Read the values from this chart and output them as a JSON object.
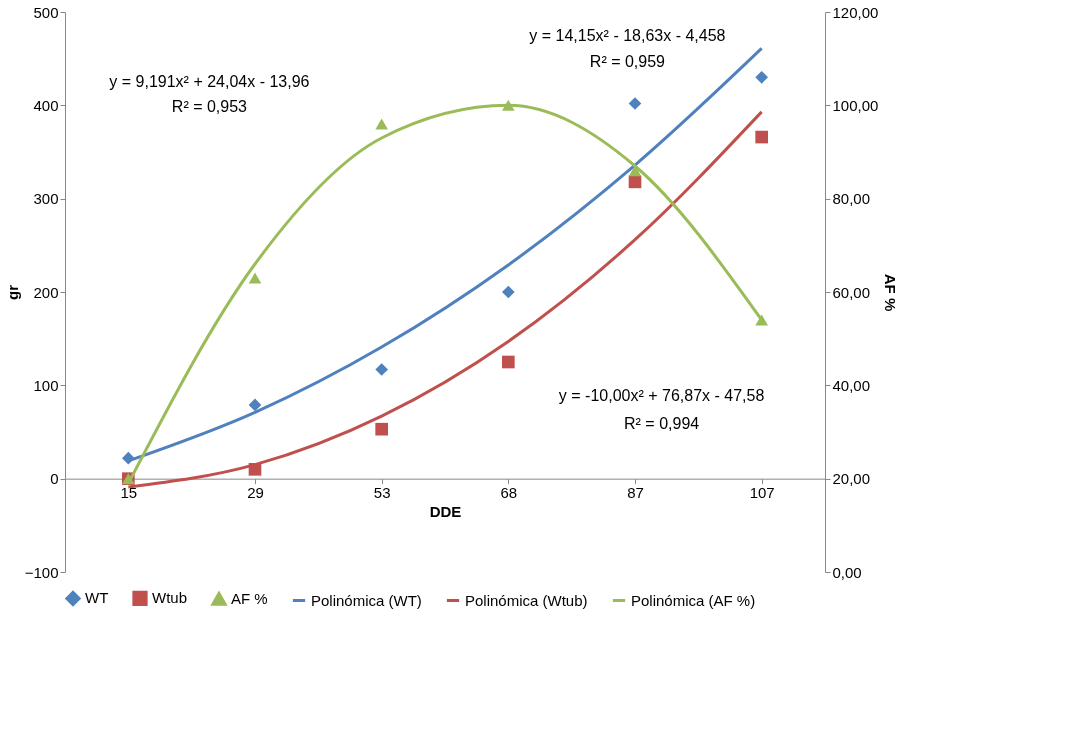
{
  "chart_data": {
    "type": "scatter",
    "xlabel": "DDE",
    "ylabel": "gr",
    "y2label": "AF %",
    "categories": [
      "15",
      "29",
      "53",
      "68",
      "87",
      "107"
    ],
    "series": [
      {
        "name": "WT",
        "marker": "diamond",
        "color": "#4f81bd",
        "values": [
          22,
          79,
          117,
          200,
          402,
          430
        ]
      },
      {
        "name": "Wtub",
        "marker": "square",
        "color": "#c0504d",
        "values": [
          0,
          10,
          53,
          125,
          318,
          366
        ]
      },
      {
        "name": "AF %",
        "marker": "triangle",
        "axis": "y2",
        "color": "#9bbb59",
        "values": [
          20,
          63,
          96,
          100,
          86,
          54
        ]
      },
      {
        "name": "Polinómica (WT)",
        "type": "line",
        "color": "#4f81bd",
        "values": [
          19,
          71,
          141,
          229,
          336,
          461
        ]
      },
      {
        "name": "Polinómica (Wtub)",
        "type": "line",
        "color": "#c0504d",
        "values": [
          -9,
          15,
          67,
          147,
          256,
          393
        ]
      },
      {
        "name": "Polinómica (AF %)",
        "type": "line",
        "axis": "y2",
        "color": "#9bbb59",
        "values": [
          19,
          66,
          93,
          100,
          87,
          54
        ]
      }
    ],
    "ylim": [
      -100,
      500
    ],
    "yticks": [
      -100,
      0,
      100,
      200,
      300,
      400,
      500
    ],
    "y2lim": [
      0,
      120
    ],
    "y2ticks": [
      {
        "value": 0,
        "label": "0,00"
      },
      {
        "value": 20,
        "label": "20,00"
      },
      {
        "value": 40,
        "label": "40,00"
      },
      {
        "value": 60,
        "label": "60,00"
      },
      {
        "value": 80,
        "label": "80,00"
      },
      {
        "value": 100,
        "label": "100,00"
      },
      {
        "value": 120,
        "label": "120,00"
      }
    ],
    "annotations": [
      "y = 9,191x² + 24,04x - 13,96",
      "R² = 0,953",
      "y = 14,15x² - 18,63x - 4,458",
      "R² = 0,959",
      "y = -10,00x² + 76,87x - 47,58",
      "R² = 0,994"
    ],
    "grid": false,
    "legend": "bottom"
  }
}
